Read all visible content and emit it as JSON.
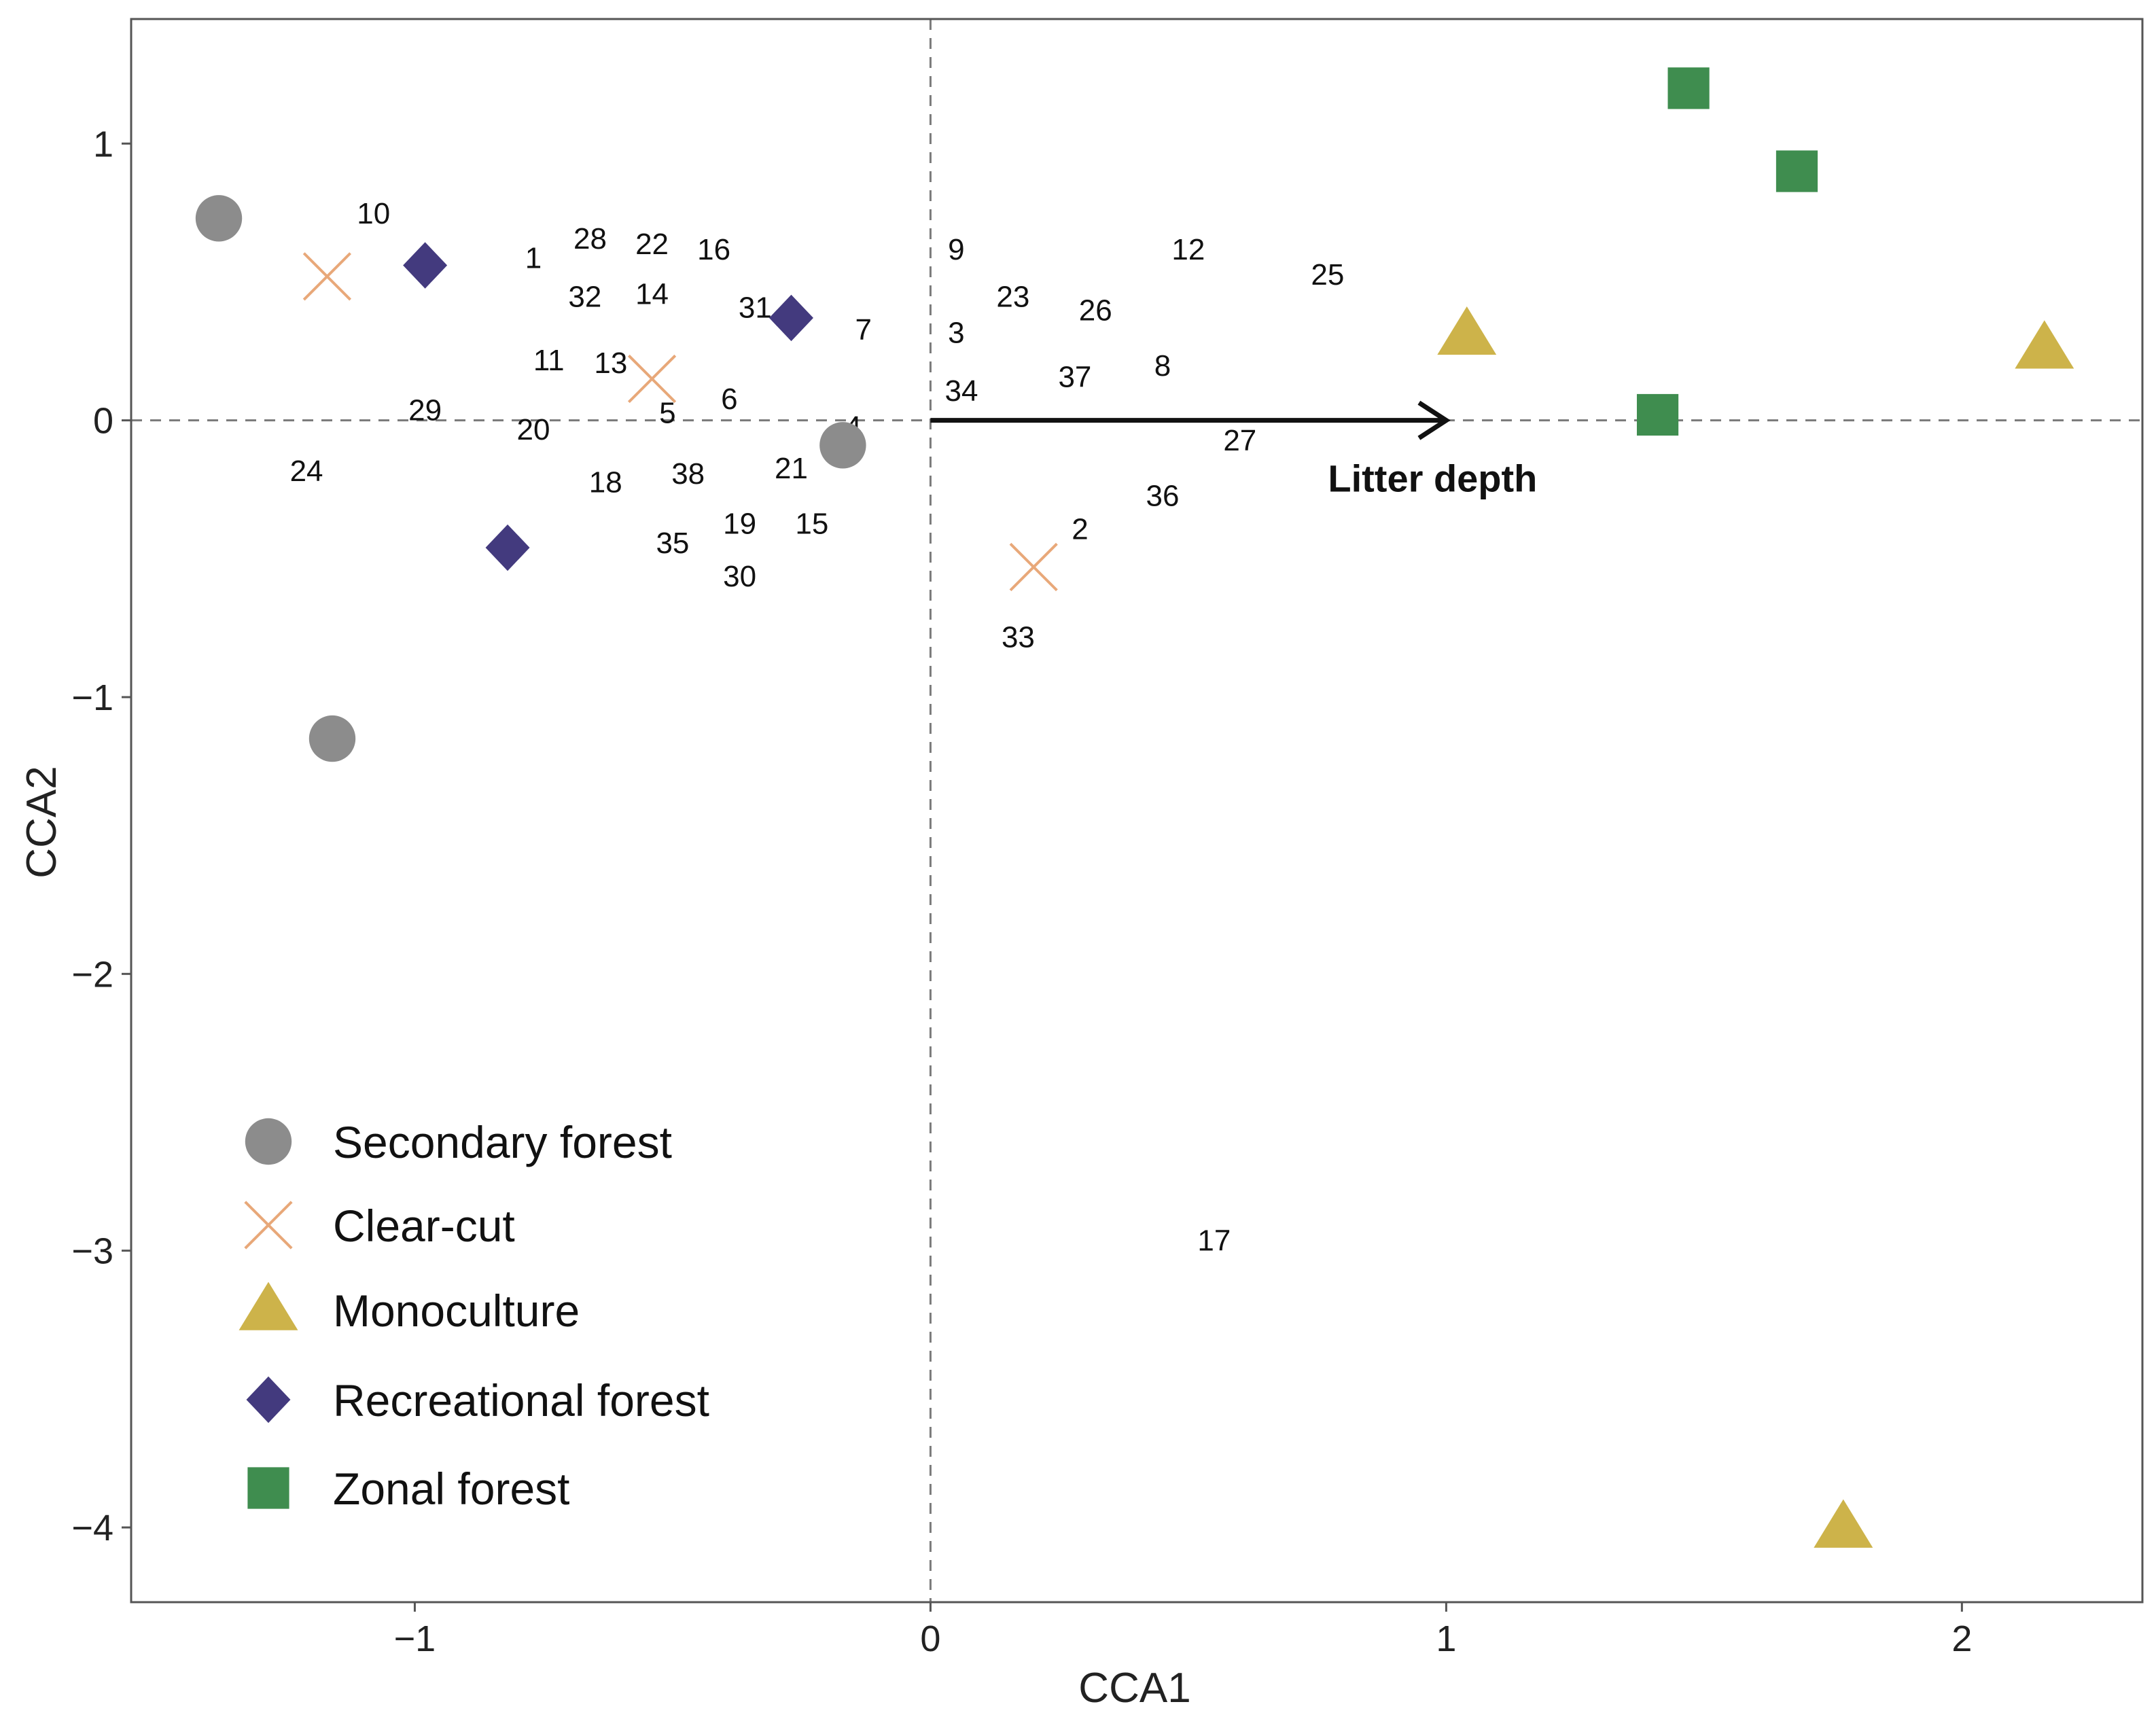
{
  "chart_data": {
    "type": "scatter",
    "title": "",
    "xlabel": "CCA1",
    "ylabel": "CCA2",
    "xlim": [
      -1.55,
      2.35
    ],
    "ylim": [
      -4.27,
      1.45
    ],
    "x_ticks": [
      -1,
      0,
      1,
      2
    ],
    "x_tick_labels": [
      "−1",
      "0",
      "1",
      "2"
    ],
    "y_ticks": [
      1,
      0,
      -1,
      -2,
      -3,
      -4
    ],
    "y_tick_labels": [
      "1",
      "0",
      "−1",
      "−2",
      "−3",
      "−4"
    ],
    "grid": false,
    "reference_lines": [
      {
        "axis": "x",
        "value": 0,
        "style": "dashed"
      },
      {
        "axis": "y",
        "value": 0,
        "style": "dashed"
      }
    ],
    "legend_position": "bottom-left",
    "series": [
      {
        "name": "Secondary forest",
        "marker": "circle",
        "color": "#8c8c8c",
        "points": [
          {
            "x": -1.38,
            "y": 0.73
          },
          {
            "x": -1.16,
            "y": -1.15
          },
          {
            "x": -0.17,
            "y": -0.09
          }
        ]
      },
      {
        "name": "Clear-cut",
        "marker": "x",
        "color": "#e8a879",
        "points": [
          {
            "x": -1.17,
            "y": 0.52
          },
          {
            "x": -0.54,
            "y": 0.15
          },
          {
            "x": 0.2,
            "y": -0.53
          }
        ]
      },
      {
        "name": "Monoculture",
        "marker": "triangle",
        "color": "#cdb34a",
        "points": [
          {
            "x": 1.04,
            "y": 0.31
          },
          {
            "x": 2.16,
            "y": 0.26
          },
          {
            "x": 1.77,
            "y": -4.0
          }
        ]
      },
      {
        "name": "Recreational forest",
        "marker": "diamond",
        "color": "#433a7e",
        "points": [
          {
            "x": -0.98,
            "y": 0.56
          },
          {
            "x": -0.27,
            "y": 0.37
          },
          {
            "x": -0.82,
            "y": -0.46
          }
        ]
      },
      {
        "name": "Zonal forest",
        "marker": "square",
        "color": "#3f8d4f",
        "points": [
          {
            "x": 1.47,
            "y": 1.2
          },
          {
            "x": 1.68,
            "y": 0.9
          },
          {
            "x": 1.41,
            "y": 0.02
          }
        ]
      }
    ],
    "species_labels": [
      {
        "text": "10",
        "x": -1.08,
        "y": 0.75
      },
      {
        "text": "1",
        "x": -0.77,
        "y": 0.59
      },
      {
        "text": "28",
        "x": -0.66,
        "y": 0.66
      },
      {
        "text": "22",
        "x": -0.54,
        "y": 0.64
      },
      {
        "text": "16",
        "x": -0.42,
        "y": 0.62
      },
      {
        "text": "32",
        "x": -0.67,
        "y": 0.45
      },
      {
        "text": "14",
        "x": -0.54,
        "y": 0.46
      },
      {
        "text": "31",
        "x": -0.34,
        "y": 0.41
      },
      {
        "text": "7",
        "x": -0.13,
        "y": 0.33
      },
      {
        "text": "9",
        "x": 0.05,
        "y": 0.62
      },
      {
        "text": "12",
        "x": 0.5,
        "y": 0.62
      },
      {
        "text": "25",
        "x": 0.77,
        "y": 0.53
      },
      {
        "text": "23",
        "x": 0.16,
        "y": 0.45
      },
      {
        "text": "26",
        "x": 0.32,
        "y": 0.4
      },
      {
        "text": "3",
        "x": 0.05,
        "y": 0.32
      },
      {
        "text": "11",
        "x": -0.74,
        "y": 0.22
      },
      {
        "text": "13",
        "x": -0.62,
        "y": 0.21
      },
      {
        "text": "37",
        "x": 0.28,
        "y": 0.16
      },
      {
        "text": "8",
        "x": 0.45,
        "y": 0.2
      },
      {
        "text": "34",
        "x": 0.06,
        "y": 0.11
      },
      {
        "text": "29",
        "x": -0.98,
        "y": 0.04
      },
      {
        "text": "5",
        "x": -0.51,
        "y": 0.03
      },
      {
        "text": "6",
        "x": -0.39,
        "y": 0.08
      },
      {
        "text": "20",
        "x": -0.77,
        "y": -0.03
      },
      {
        "text": "4",
        "x": -0.15,
        "y": -0.02
      },
      {
        "text": "27",
        "x": 0.6,
        "y": -0.07
      },
      {
        "text": "24",
        "x": -1.21,
        "y": -0.18
      },
      {
        "text": "18",
        "x": -0.63,
        "y": -0.22
      },
      {
        "text": "38",
        "x": -0.47,
        "y": -0.19
      },
      {
        "text": "21",
        "x": -0.27,
        "y": -0.17
      },
      {
        "text": "36",
        "x": 0.45,
        "y": -0.27
      },
      {
        "text": "2",
        "x": 0.29,
        "y": -0.39
      },
      {
        "text": "19",
        "x": -0.37,
        "y": -0.37
      },
      {
        "text": "15",
        "x": -0.23,
        "y": -0.37
      },
      {
        "text": "35",
        "x": -0.5,
        "y": -0.44
      },
      {
        "text": "30",
        "x": -0.37,
        "y": -0.56
      },
      {
        "text": "33",
        "x": 0.17,
        "y": -0.78
      },
      {
        "text": "17",
        "x": 0.55,
        "y": -2.96
      }
    ],
    "env_vectors": [
      {
        "name": "Litter depth",
        "x": 1.0,
        "y": 0.0
      }
    ],
    "legend": [
      {
        "label": "Secondary forest",
        "marker": "circle"
      },
      {
        "label": "Clear-cut",
        "marker": "x"
      },
      {
        "label": "Monoculture",
        "marker": "triangle"
      },
      {
        "label": "Recreational forest",
        "marker": "diamond"
      },
      {
        "label": "Zonal forest",
        "marker": "square"
      }
    ]
  }
}
